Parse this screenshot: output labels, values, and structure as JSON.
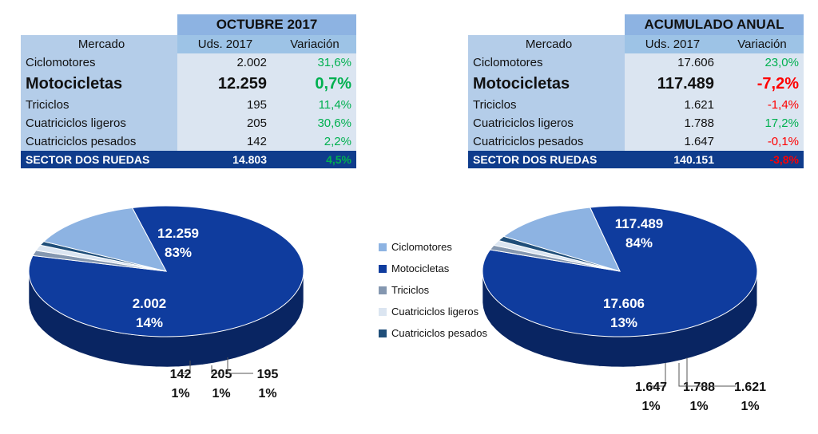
{
  "left_table": {
    "title": "OCTUBRE 2017",
    "headers": [
      "Mercado",
      "Uds. 2017",
      "Variación"
    ],
    "rows": [
      {
        "mercado": "Ciclomotores",
        "uds": "2.002",
        "var": "31,6%",
        "sign": "pos"
      },
      {
        "mercado": "Motocicletas",
        "uds": "12.259",
        "var": "0,7%",
        "sign": "pos",
        "big": true
      },
      {
        "mercado": "Triciclos",
        "uds": "195",
        "var": "11,4%",
        "sign": "pos"
      },
      {
        "mercado": "Cuatriciclos ligeros",
        "uds": "205",
        "var": "30,6%",
        "sign": "pos"
      },
      {
        "mercado": "Cuatriciclos pesados",
        "uds": "142",
        "var": "2,2%",
        "sign": "pos"
      }
    ],
    "total": {
      "mercado": "SECTOR DOS RUEDAS",
      "uds": "14.803",
      "var": "4,5%",
      "sign": "pos"
    }
  },
  "right_table": {
    "title": "ACUMULADO ANUAL",
    "headers": [
      "Mercado",
      "Uds. 2017",
      "Variación"
    ],
    "rows": [
      {
        "mercado": "Ciclomotores",
        "uds": "17.606",
        "var": "23,0%",
        "sign": "pos"
      },
      {
        "mercado": "Motocicletas",
        "uds": "117.489",
        "var": "-7,2%",
        "sign": "neg",
        "big": true
      },
      {
        "mercado": "Triciclos",
        "uds": "1.621",
        "var": "-1,4%",
        "sign": "neg"
      },
      {
        "mercado": "Cuatriciclos ligeros",
        "uds": "1.788",
        "var": "17,2%",
        "sign": "pos"
      },
      {
        "mercado": "Cuatriciclos pesados",
        "uds": "1.647",
        "var": "-0,1%",
        "sign": "neg"
      }
    ],
    "total": {
      "mercado": "SECTOR DOS RUEDAS",
      "uds": "140.151",
      "var": "-3,8%",
      "sign": "neg"
    }
  },
  "colors": {
    "Ciclomotores": "#8db3e2",
    "Motocicletas": "#0f3c9e",
    "Triciclos": "#8497b0",
    "Cuatriciclos ligeros": "#dbe5f1",
    "Cuatriciclos pesados": "#1f4e79",
    "positive": "#00b050",
    "negative": "#ff0000"
  },
  "legend": [
    "Ciclomotores",
    "Motocicletas",
    "Triciclos",
    "Cuatriciclos ligeros",
    "Cuatriciclos pesados"
  ],
  "chart_data": [
    {
      "type": "pie",
      "categories": [
        "Ciclomotores",
        "Motocicletas",
        "Triciclos",
        "Cuatriciclos ligeros",
        "Cuatriciclos pesados"
      ],
      "values": [
        2002,
        12259,
        195,
        205,
        142
      ],
      "value_labels": [
        "2.002",
        "12.259",
        "195",
        "205",
        "142"
      ],
      "percent_labels": [
        "14%",
        "83%",
        "1%",
        "1%",
        "1%"
      ]
    },
    {
      "type": "pie",
      "categories": [
        "Ciclomotores",
        "Motocicletas",
        "Triciclos",
        "Cuatriciclos ligeros",
        "Cuatriciclos pesados"
      ],
      "values": [
        17606,
        117489,
        1621,
        1788,
        1647
      ],
      "value_labels": [
        "17.606",
        "117.489",
        "1.621",
        "1.788",
        "1.647"
      ],
      "percent_labels": [
        "13%",
        "84%",
        "1%",
        "1%",
        "1%"
      ]
    }
  ]
}
